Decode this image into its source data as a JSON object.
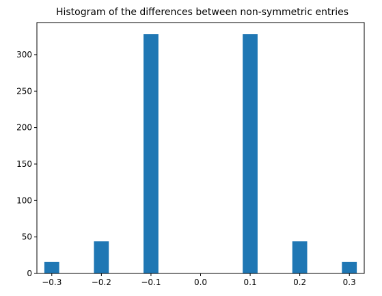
{
  "chart_data": {
    "type": "bar",
    "title": "Histogram of the differences between non-symmetric entries",
    "xlabel": "",
    "ylabel": "",
    "bar_color": "#1f77b4",
    "xlim": [
      -0.33,
      0.33
    ],
    "ylim": [
      0,
      344
    ],
    "bin_width": 0.03,
    "x_ticks": [
      -0.3,
      -0.2,
      -0.1,
      0.0,
      0.1,
      0.2,
      0.3
    ],
    "x_tick_labels": [
      "−0.3",
      "−0.2",
      "−0.1",
      "0.0",
      "0.1",
      "0.2",
      "0.3"
    ],
    "y_ticks": [
      0,
      50,
      100,
      150,
      200,
      250,
      300
    ],
    "y_tick_labels": [
      "0",
      "50",
      "100",
      "150",
      "200",
      "250",
      "300"
    ],
    "bars": [
      {
        "x": -0.3,
        "value": 16
      },
      {
        "x": -0.2,
        "value": 44
      },
      {
        "x": -0.1,
        "value": 328
      },
      {
        "x": 0.1,
        "value": 328
      },
      {
        "x": 0.2,
        "value": 44
      },
      {
        "x": 0.3,
        "value": 16
      }
    ],
    "grid": false,
    "legend": false
  }
}
